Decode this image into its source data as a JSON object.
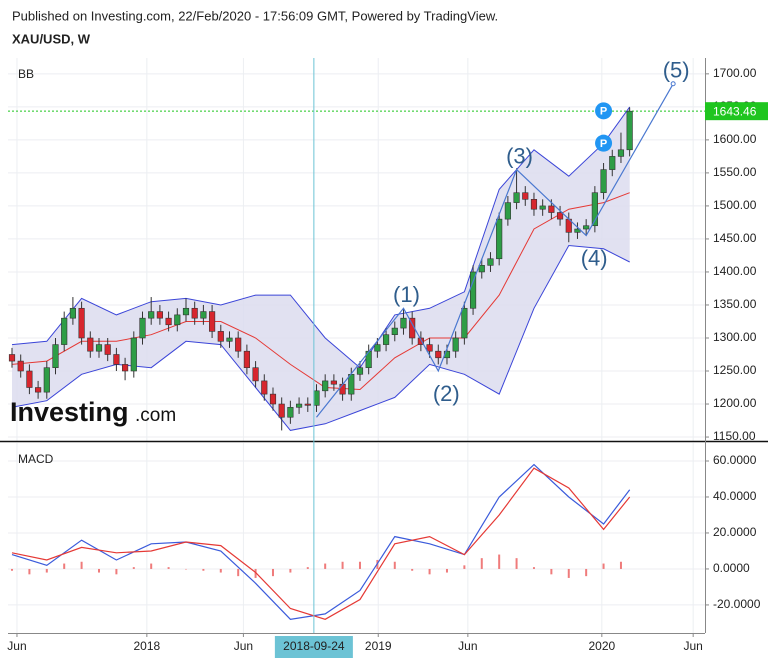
{
  "header": {
    "published": "Published on Investing.com, 22/Feb/2020 - 17:56:09 GMT, Powered by TradingView.",
    "symbol": "XAU/USD, W"
  },
  "logo": {
    "name": "Investing",
    "suffix": ".com"
  },
  "chart_data": [
    {
      "type": "candlestick",
      "pane_label": "BB",
      "up_color": "#2e9d46",
      "down_color": "#d7262e",
      "open": [
        1275,
        1265,
        1250,
        1225,
        1218,
        1255,
        1290,
        1330,
        1345,
        1300,
        1280,
        1290,
        1275,
        1260,
        1250,
        1300,
        1330,
        1340,
        1330,
        1320,
        1335,
        1345,
        1330,
        1340,
        1310,
        1295,
        1300,
        1280,
        1255,
        1235,
        1215,
        1200,
        1180,
        1195,
        1200,
        1198,
        1220,
        1235,
        1230,
        1215,
        1245,
        1255,
        1280,
        1290,
        1305,
        1315,
        1330,
        1300,
        1290,
        1280,
        1270,
        1280,
        1300,
        1345,
        1400,
        1410,
        1420,
        1480,
        1505,
        1520,
        1510,
        1495,
        1500,
        1490,
        1480,
        1460,
        1465,
        1470,
        1520,
        1555,
        1575,
        1585
      ],
      "high": [
        1285,
        1275,
        1260,
        1235,
        1265,
        1300,
        1340,
        1362,
        1355,
        1310,
        1300,
        1300,
        1285,
        1270,
        1310,
        1340,
        1362,
        1350,
        1340,
        1345,
        1360,
        1355,
        1350,
        1350,
        1320,
        1310,
        1310,
        1290,
        1265,
        1245,
        1225,
        1210,
        1205,
        1210,
        1210,
        1230,
        1245,
        1245,
        1240,
        1255,
        1265,
        1290,
        1300,
        1315,
        1325,
        1345,
        1340,
        1310,
        1300,
        1290,
        1290,
        1310,
        1355,
        1410,
        1420,
        1430,
        1490,
        1515,
        1557,
        1530,
        1520,
        1510,
        1510,
        1500,
        1490,
        1475,
        1480,
        1530,
        1565,
        1585,
        1611,
        1649
      ],
      "low": [
        1255,
        1240,
        1215,
        1208,
        1208,
        1245,
        1280,
        1320,
        1290,
        1270,
        1270,
        1265,
        1250,
        1236,
        1240,
        1290,
        1320,
        1320,
        1310,
        1310,
        1325,
        1320,
        1320,
        1300,
        1285,
        1285,
        1270,
        1245,
        1225,
        1205,
        1190,
        1160,
        1170,
        1185,
        1188,
        1188,
        1210,
        1220,
        1205,
        1205,
        1235,
        1245,
        1270,
        1280,
        1295,
        1305,
        1290,
        1280,
        1270,
        1260,
        1260,
        1270,
        1290,
        1335,
        1390,
        1400,
        1410,
        1470,
        1495,
        1500,
        1485,
        1485,
        1480,
        1470,
        1445,
        1450,
        1455,
        1460,
        1510,
        1545,
        1565,
        1575
      ],
      "close": [
        1265,
        1250,
        1225,
        1218,
        1255,
        1290,
        1330,
        1345,
        1300,
        1280,
        1290,
        1275,
        1260,
        1250,
        1300,
        1330,
        1340,
        1330,
        1320,
        1335,
        1345,
        1330,
        1340,
        1310,
        1295,
        1300,
        1280,
        1255,
        1235,
        1215,
        1200,
        1180,
        1195,
        1200,
        1198,
        1220,
        1235,
        1230,
        1215,
        1245,
        1255,
        1280,
        1290,
        1305,
        1315,
        1330,
        1300,
        1290,
        1280,
        1270,
        1280,
        1300,
        1345,
        1400,
        1410,
        1420,
        1480,
        1505,
        1520,
        1510,
        1495,
        1500,
        1490,
        1480,
        1460,
        1465,
        1470,
        1520,
        1555,
        1575,
        1585,
        1643.46
      ],
      "price_color": "#1fc51f",
      "bands": {
        "x": [
          0,
          4,
          8,
          12,
          16,
          20,
          24,
          28,
          32,
          36,
          40,
          44,
          48,
          52,
          56,
          60,
          64,
          68,
          71
        ],
        "upper": [
          1290,
          1295,
          1360,
          1335,
          1355,
          1360,
          1350,
          1365,
          1365,
          1300,
          1255,
          1335,
          1345,
          1370,
          1525,
          1585,
          1545,
          1595,
          1650
        ],
        "middle": [
          1260,
          1265,
          1295,
          1295,
          1305,
          1325,
          1325,
          1300,
          1260,
          1225,
          1222,
          1270,
          1300,
          1300,
          1365,
          1465,
          1495,
          1505,
          1520
        ],
        "lower": [
          1195,
          1205,
          1245,
          1260,
          1255,
          1295,
          1290,
          1225,
          1160,
          1170,
          1190,
          1210,
          1260,
          1245,
          1215,
          1345,
          1440,
          1435,
          1415
        ],
        "band_color": "#3b45d8",
        "middle_color": "#e53935",
        "fill": "#dcdcef"
      },
      "waves": {
        "x": [
          35,
          45,
          49,
          58,
          66,
          76
        ],
        "values": [
          1180,
          1345,
          1250,
          1555,
          1455,
          1685
        ],
        "labels": [
          null,
          "(1)",
          "(2)",
          "(3)",
          "(4)",
          "(5)"
        ],
        "color": "#4a78d0"
      },
      "pivots": {
        "x": [
          68,
          68
        ],
        "values": [
          1644,
          1595
        ],
        "label": "P",
        "color": "#2196f3"
      },
      "xlim": [
        -0.46,
        79.66
      ],
      "xticks": [
        {
          "value": 0.57,
          "label": "Jun"
        },
        {
          "value": 15.5,
          "label": "2018"
        },
        {
          "value": 26.6,
          "label": "Jun"
        },
        {
          "value": 42.1,
          "label": "2019"
        },
        {
          "value": 52.4,
          "label": "Jun"
        },
        {
          "value": 67.8,
          "label": "2020"
        },
        {
          "value": 78.3,
          "label": "Jun"
        }
      ],
      "ylim": [
        1144,
        1724
      ],
      "yticks": [
        {
          "value": 1150,
          "label": "1150.00"
        },
        {
          "value": 1200,
          "label": "1200.00"
        },
        {
          "value": 1250,
          "label": "1250.00"
        },
        {
          "value": 1300,
          "label": "1300.00"
        },
        {
          "value": 1350,
          "label": "1350.00"
        },
        {
          "value": 1400,
          "label": "1400.00"
        },
        {
          "value": 1450,
          "label": "1450.00"
        },
        {
          "value": 1500,
          "label": "1500.00"
        },
        {
          "value": 1550,
          "label": "1550.00"
        },
        {
          "value": 1600,
          "label": "1600.00"
        },
        {
          "value": 1650,
          "label": "1650.00"
        },
        {
          "value": 1700,
          "label": "1700.00"
        }
      ],
      "crosshair": {
        "value": 34.7,
        "label": "2018-09-24",
        "color": "#6cc3d5"
      },
      "grid": true
    },
    {
      "type": "macd",
      "pane_label": "MACD",
      "x": [
        0,
        4,
        8,
        12,
        16,
        20,
        24,
        28,
        32,
        36,
        40,
        44,
        48,
        52,
        56,
        60,
        64,
        68,
        71
      ],
      "lines": [
        {
          "color": "#3b5bdb",
          "values": [
            8,
            2,
            16,
            5,
            14,
            15,
            10,
            -8,
            -28,
            -25,
            -12,
            18,
            14,
            8,
            40,
            58,
            40,
            25,
            44
          ]
        },
        {
          "color": "#e53935",
          "values": [
            9,
            5,
            12,
            9,
            10,
            15,
            13,
            -2,
            -22,
            -28,
            -17,
            14,
            18,
            8,
            30,
            56,
            45,
            22,
            40
          ]
        }
      ],
      "histogram": {
        "x": [
          0,
          2,
          4,
          6,
          8,
          10,
          12,
          14,
          16,
          18,
          20,
          22,
          24,
          26,
          28,
          30,
          32,
          34,
          36,
          38,
          40,
          42,
          44,
          46,
          48,
          50,
          52,
          54,
          56,
          58,
          60,
          62,
          64,
          66,
          68,
          70
        ],
        "values": [
          -1,
          -3,
          -2,
          3,
          4,
          -2,
          -3,
          1,
          3,
          1,
          0,
          -1,
          -2,
          -4,
          -5,
          -4,
          -2,
          1,
          3,
          4,
          4,
          5,
          4,
          -1,
          -3,
          -2,
          2,
          6,
          8,
          6,
          1,
          -3,
          -5,
          -4,
          3,
          4
        ],
        "color": "#ef7b7b"
      },
      "ylim": [
        -35.6,
        70
      ],
      "yticks": [
        {
          "value": -20,
          "label": "-20.0000"
        },
        {
          "value": 0,
          "label": "0.0000"
        },
        {
          "value": 20,
          "label": "20.0000"
        },
        {
          "value": 40,
          "label": "40.0000"
        },
        {
          "value": 60,
          "label": "60.0000"
        }
      ],
      "grid": true
    }
  ]
}
